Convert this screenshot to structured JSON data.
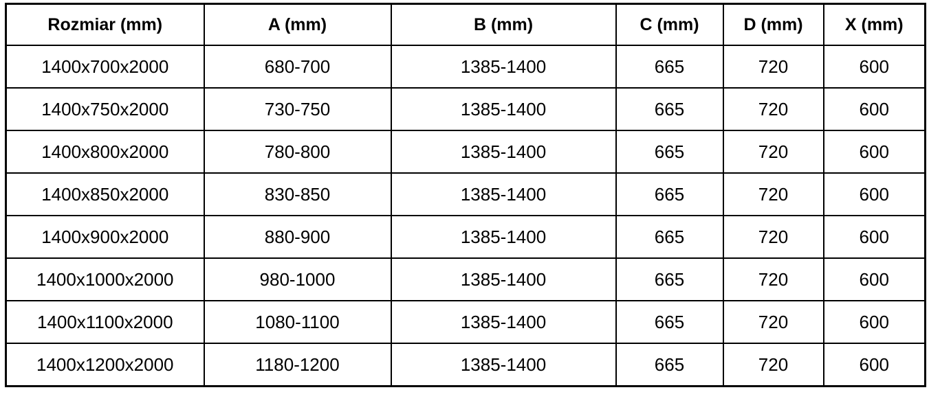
{
  "colors": {
    "border": "#000000",
    "background": "#ffffff",
    "text": "#000000"
  },
  "table": {
    "headers": [
      "Rozmiar (mm)",
      "A (mm)",
      "B (mm)",
      "C (mm)",
      "D (mm)",
      "X (mm)"
    ],
    "rows": [
      [
        "1400x700x2000",
        "680-700",
        "1385-1400",
        "665",
        "720",
        "600"
      ],
      [
        "1400x750x2000",
        "730-750",
        "1385-1400",
        "665",
        "720",
        "600"
      ],
      [
        "1400x800x2000",
        "780-800",
        "1385-1400",
        "665",
        "720",
        "600"
      ],
      [
        "1400x850x2000",
        "830-850",
        "1385-1400",
        "665",
        "720",
        "600"
      ],
      [
        "1400x900x2000",
        "880-900",
        "1385-1400",
        "665",
        "720",
        "600"
      ],
      [
        "1400x1000x2000",
        "980-1000",
        "1385-1400",
        "665",
        "720",
        "600"
      ],
      [
        "1400x1100x2000",
        "1080-1100",
        "1385-1400",
        "665",
        "720",
        "600"
      ],
      [
        "1400x1200x2000",
        "1180-1200",
        "1385-1400",
        "665",
        "720",
        "600"
      ]
    ]
  }
}
